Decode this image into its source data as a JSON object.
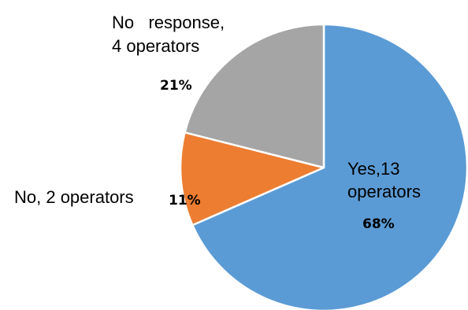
{
  "chart_data": {
    "type": "pie",
    "title": "",
    "slices": [
      {
        "label_lines": [
          "Yes,13",
          "operators"
        ],
        "value": 13,
        "percent_label": "68%",
        "color": "#5b9bd5"
      },
      {
        "label_lines": [
          "No, 2 operators"
        ],
        "value": 2,
        "percent_label": "11%",
        "color": "#ed7d31"
      },
      {
        "label_lines": [
          "No   response,",
          "4 operators"
        ],
        "value": 4,
        "percent_label": "21%",
        "color": "#a5a5a5"
      }
    ],
    "start_angle_deg": 0,
    "direction": "clockwise",
    "legend": "none"
  }
}
